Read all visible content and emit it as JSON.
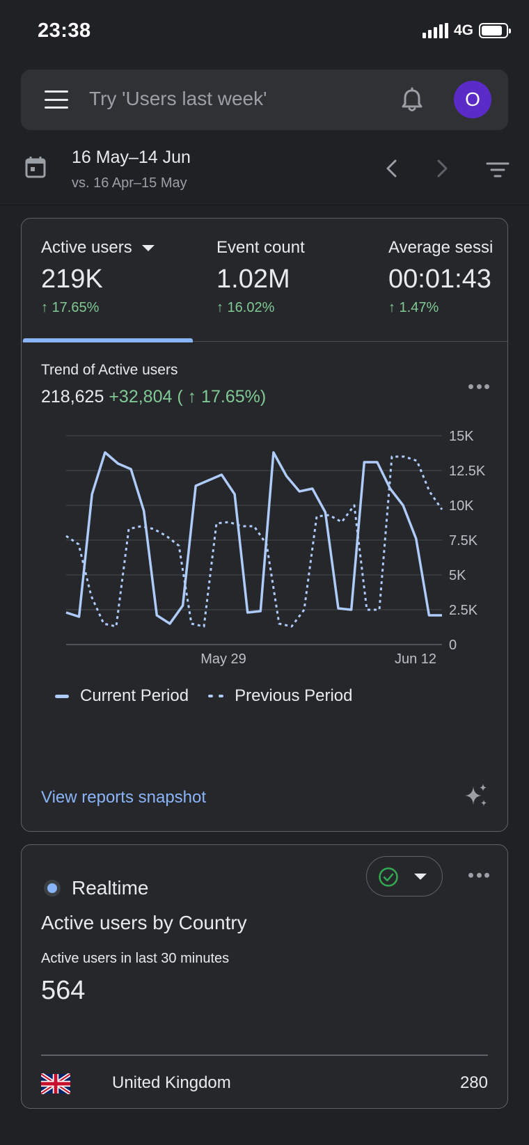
{
  "status_bar": {
    "time": "23:38",
    "network": "4G"
  },
  "search": {
    "placeholder": "Try 'Users last week'",
    "avatar_initial": "O"
  },
  "date_range": {
    "current": "16 May–14 Jun",
    "comparison": "vs. 16 Apr–15 May"
  },
  "metrics": [
    {
      "label": "Active users",
      "value": "219K",
      "change": "↑ 17.65%"
    },
    {
      "label": "Event count",
      "value": "1.02M",
      "change": "↑ 16.02%"
    },
    {
      "label": "Average sessi",
      "value": "00:01:43",
      "change": "↑ 1.47%"
    }
  ],
  "trend": {
    "title": "Trend of Active users",
    "total": "218,625",
    "delta": "+32,804 ( ↑ 17.65%)"
  },
  "chart_data": {
    "type": "line",
    "x_tick_labels": [
      "May 29",
      "Jun 12"
    ],
    "y_ticks": [
      "15K",
      "12.5K",
      "10K",
      "7.5K",
      "5K",
      "2.5K",
      "0"
    ],
    "ylim": [
      0,
      15000
    ],
    "grid": true,
    "legend_position": "bottom-left",
    "series": [
      {
        "name": "Current Period",
        "style": "solid",
        "color": "#aecbfa",
        "values": [
          2300,
          2000,
          10800,
          13800,
          13000,
          12600,
          9600,
          2100,
          1500,
          2800,
          11400,
          11800,
          12200,
          10800,
          2300,
          2400,
          13800,
          12100,
          11000,
          11200,
          9500,
          2600,
          2500,
          13100,
          13100,
          11200,
          10000,
          7600,
          2100,
          2100
        ]
      },
      {
        "name": "Previous Period",
        "style": "dotted",
        "color": "#aecbfa",
        "values": [
          7800,
          7200,
          3500,
          1500,
          1300,
          8300,
          8500,
          8300,
          7800,
          7100,
          1500,
          1300,
          8700,
          8800,
          8500,
          8500,
          7200,
          1500,
          1300,
          2500,
          9200,
          9300,
          8800,
          10000,
          2500,
          2500,
          13500,
          13500,
          13200,
          11000,
          9700
        ]
      }
    ]
  },
  "links": {
    "view_reports": "View reports snapshot"
  },
  "realtime": {
    "label": "Realtime",
    "title": "Active users by Country",
    "subtitle": "Active users in last 30 minutes",
    "value": "564",
    "countries": [
      {
        "name": "United Kingdom",
        "value": "280"
      }
    ]
  },
  "colors": {
    "accent": "#8ab4f8",
    "positive": "#81c995",
    "avatar": "#5b2bc7"
  }
}
